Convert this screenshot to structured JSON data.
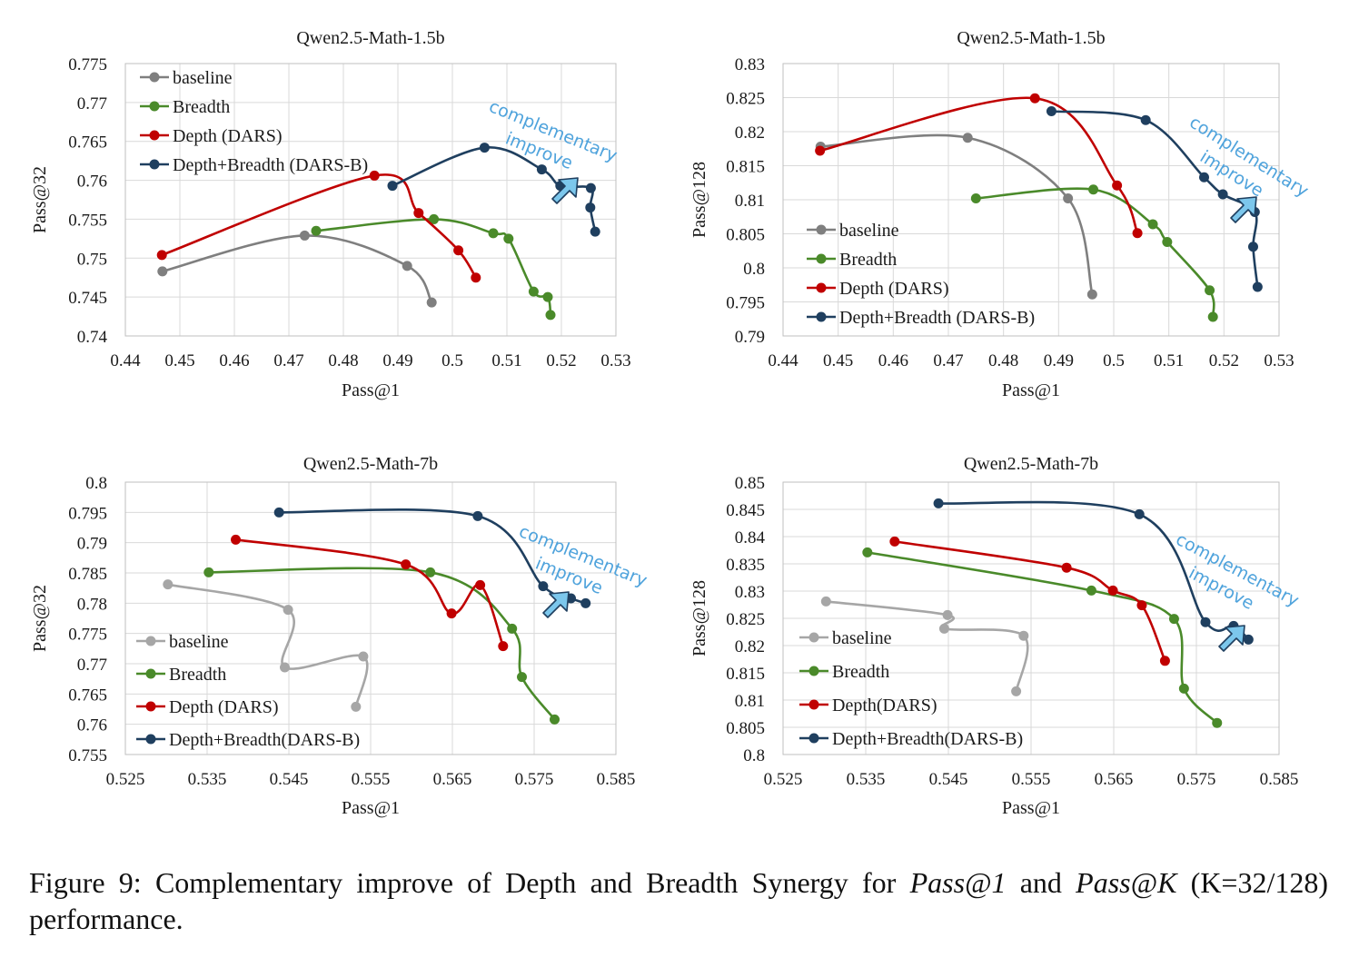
{
  "caption": {
    "prefix": "Figure 9:  Complementary improve of Depth and Breadth Synergy for ",
    "em1": "Pass@1",
    "mid": " and ",
    "em2": "Pass@K",
    "suffix": " (K=32/128) performance."
  },
  "colors": {
    "baseline": "#7f7f7f",
    "baseline_light": "#a6a6a6",
    "breadth": "#4a8a2a",
    "depth": "#c00000",
    "dars_b": "#1f3f5f",
    "annotation": "#4fa3dc",
    "arrow_fill": "#7cc7ec"
  },
  "chart_data": [
    {
      "type": "line",
      "title": "Qwen2.5-Math-1.5b",
      "xlabel": "Pass@1",
      "ylabel": "Pass@32",
      "xlim": [
        0.44,
        0.53
      ],
      "ylim": [
        0.74,
        0.775
      ],
      "xticks": [
        "0.44",
        "0.45",
        "0.46",
        "0.47",
        "0.48",
        "0.49",
        "0.5",
        "0.51",
        "0.52",
        "0.53"
      ],
      "yticks": [
        "0.74",
        "0.745",
        "0.75",
        "0.755",
        "0.76",
        "0.765",
        "0.77",
        "0.775"
      ],
      "legend_position": "top-left",
      "annotation": [
        "complementary",
        "improve"
      ],
      "series": [
        {
          "name": "baseline",
          "color_key": "baseline",
          "points": [
            [
              0.4468,
              0.7483
            ],
            [
              0.4729,
              0.7529
            ],
            [
              0.4917,
              0.749
            ],
            [
              0.4962,
              0.7443
            ]
          ]
        },
        {
          "name": "Breadth",
          "color_key": "breadth",
          "points": [
            [
              0.475,
              0.7535
            ],
            [
              0.4966,
              0.755
            ],
            [
              0.5075,
              0.7532
            ],
            [
              0.5103,
              0.7525
            ],
            [
              0.5149,
              0.7457
            ],
            [
              0.5175,
              0.745
            ],
            [
              0.518,
              0.7427
            ]
          ]
        },
        {
          "name": "Depth (DARS)",
          "color_key": "depth",
          "points": [
            [
              0.4467,
              0.7504
            ],
            [
              0.4857,
              0.7606
            ],
            [
              0.4938,
              0.7558
            ],
            [
              0.5011,
              0.751
            ],
            [
              0.5043,
              0.7475
            ]
          ]
        },
        {
          "name": "Depth+Breadth (DARS-B)",
          "color_key": "dars_b",
          "points": [
            [
              0.489,
              0.7593
            ],
            [
              0.5059,
              0.7642
            ],
            [
              0.5164,
              0.7614
            ],
            [
              0.5198,
              0.7593
            ],
            [
              0.5254,
              0.759
            ],
            [
              0.5253,
              0.7565
            ],
            [
              0.5262,
              0.7534
            ]
          ]
        }
      ]
    },
    {
      "type": "line",
      "title": "Qwen2.5-Math-1.5b",
      "xlabel": "Pass@1",
      "ylabel": "Pass@128",
      "xlim": [
        0.44,
        0.53
      ],
      "ylim": [
        0.79,
        0.83
      ],
      "xticks": [
        "0.44",
        "0.45",
        "0.46",
        "0.47",
        "0.48",
        "0.49",
        "0.5",
        "0.51",
        "0.52",
        "0.53"
      ],
      "yticks": [
        "0.79",
        "0.795",
        "0.8",
        "0.805",
        "0.81",
        "0.815",
        "0.82",
        "0.825",
        "0.83"
      ],
      "legend_position": "bottom-left",
      "annotation": [
        "complementary",
        "improve"
      ],
      "series": [
        {
          "name": "baseline",
          "color_key": "baseline",
          "points": [
            [
              0.4468,
              0.8178
            ],
            [
              0.4735,
              0.8191
            ],
            [
              0.4917,
              0.8102
            ],
            [
              0.4961,
              0.7961
            ]
          ]
        },
        {
          "name": "Breadth",
          "color_key": "breadth",
          "points": [
            [
              0.475,
              0.8102
            ],
            [
              0.4963,
              0.8115
            ],
            [
              0.5071,
              0.8064
            ],
            [
              0.5097,
              0.8038
            ],
            [
              0.5174,
              0.7967
            ],
            [
              0.518,
              0.7928
            ]
          ]
        },
        {
          "name": "Depth (DARS)",
          "color_key": "depth",
          "points": [
            [
              0.4467,
              0.8172
            ],
            [
              0.4857,
              0.8249
            ],
            [
              0.5006,
              0.8121
            ],
            [
              0.5043,
              0.8051
            ]
          ]
        },
        {
          "name": "Depth+Breadth (DARS-B)",
          "color_key": "dars_b",
          "points": [
            [
              0.4887,
              0.823
            ],
            [
              0.5058,
              0.8217
            ],
            [
              0.5164,
              0.8133
            ],
            [
              0.5198,
              0.8108
            ],
            [
              0.5256,
              0.8082
            ],
            [
              0.5253,
              0.8031
            ],
            [
              0.5261,
              0.7972
            ]
          ]
        }
      ]
    },
    {
      "type": "line",
      "title": "Qwen2.5-Math-7b",
      "xlabel": "Pass@1",
      "ylabel": "Pass@32",
      "xlim": [
        0.525,
        0.585
      ],
      "ylim": [
        0.755,
        0.8
      ],
      "xticks": [
        "0.525",
        "0.535",
        "0.545",
        "0.555",
        "0.565",
        "0.575",
        "0.585"
      ],
      "yticks": [
        "0.755",
        "0.76",
        "0.765",
        "0.77",
        "0.775",
        "0.78",
        "0.785",
        "0.79",
        "0.795",
        "0.8"
      ],
      "legend_position": "bottom-left",
      "annotation": [
        "complementary",
        "improve"
      ],
      "series": [
        {
          "name": "baseline",
          "color_key": "baseline_light",
          "points": [
            [
              0.5302,
              0.7831
            ],
            [
              0.5449,
              0.7789
            ],
            [
              0.5445,
              0.7694
            ],
            [
              0.5541,
              0.7712
            ],
            [
              0.5532,
              0.7629
            ]
          ]
        },
        {
          "name": "Breadth",
          "color_key": "breadth",
          "points": [
            [
              0.5352,
              0.7851
            ],
            [
              0.5623,
              0.7851
            ],
            [
              0.5723,
              0.7758
            ],
            [
              0.5735,
              0.7678
            ],
            [
              0.5775,
              0.7608
            ]
          ]
        },
        {
          "name": "Depth (DARS)",
          "color_key": "depth",
          "points": [
            [
              0.5385,
              0.7905
            ],
            [
              0.5593,
              0.7864
            ],
            [
              0.5649,
              0.7783
            ],
            [
              0.5684,
              0.783
            ],
            [
              0.5712,
              0.7729
            ]
          ]
        },
        {
          "name": "Depth+Breadth(DARS-B)",
          "color_key": "dars_b",
          "points": [
            [
              0.5438,
              0.795
            ],
            [
              0.5681,
              0.7944
            ],
            [
              0.5761,
              0.7828
            ],
            [
              0.5795,
              0.7808
            ],
            [
              0.5813,
              0.78
            ]
          ]
        }
      ]
    },
    {
      "type": "line",
      "title": "Qwen2.5-Math-7b",
      "xlabel": "Pass@1",
      "ylabel": "Pass@128",
      "xlim": [
        0.525,
        0.585
      ],
      "ylim": [
        0.8,
        0.85
      ],
      "xticks": [
        "0.525",
        "0.535",
        "0.545",
        "0.555",
        "0.565",
        "0.575",
        "0.585"
      ],
      "yticks": [
        "0.8",
        "0.805",
        "0.81",
        "0.815",
        "0.82",
        "0.825",
        "0.83",
        "0.835",
        "0.84",
        "0.845",
        "0.85"
      ],
      "legend_position": "bottom-left",
      "annotation": [
        "complementary",
        "improve"
      ],
      "series": [
        {
          "name": "baseline",
          "color_key": "baseline_light",
          "points": [
            [
              0.5302,
              0.8281
            ],
            [
              0.5449,
              0.8256
            ],
            [
              0.5445,
              0.8231
            ],
            [
              0.5541,
              0.8218
            ],
            [
              0.5532,
              0.8116
            ]
          ]
        },
        {
          "name": "Breadth",
          "color_key": "breadth",
          "points": [
            [
              0.5352,
              0.8371
            ],
            [
              0.5623,
              0.8301
            ],
            [
              0.5723,
              0.8249
            ],
            [
              0.5735,
              0.8121
            ],
            [
              0.5775,
              0.8058
            ]
          ]
        },
        {
          "name": "Depth(DARS)",
          "color_key": "depth",
          "points": [
            [
              0.5385,
              0.8391
            ],
            [
              0.5593,
              0.8343
            ],
            [
              0.5649,
              0.8301
            ],
            [
              0.5684,
              0.8274
            ],
            [
              0.5712,
              0.8172
            ]
          ]
        },
        {
          "name": "Depth+Breadth(DARS-B)",
          "color_key": "dars_b",
          "points": [
            [
              0.5438,
              0.8461
            ],
            [
              0.5681,
              0.8441
            ],
            [
              0.5761,
              0.8243
            ],
            [
              0.5795,
              0.8236
            ],
            [
              0.5813,
              0.8211
            ]
          ]
        }
      ]
    }
  ]
}
